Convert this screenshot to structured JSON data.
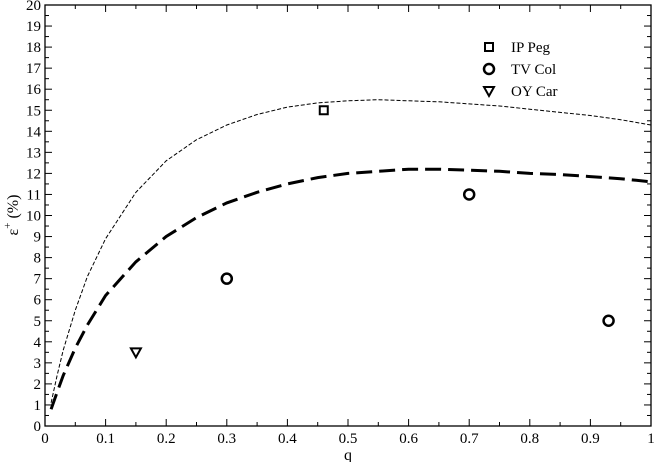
{
  "chart_data": {
    "type": "scatter",
    "xlabel": "q",
    "ylabel_main": "ε",
    "ylabel_sup": "+",
    "ylabel_unit": "(%)",
    "xlim": [
      0,
      1
    ],
    "ylim": [
      0,
      20
    ],
    "x_ticks": [
      "0",
      "0.1",
      "0.2",
      "0.3",
      "0.4",
      "0.5",
      "0.6",
      "0.7",
      "0.8",
      "0.9",
      "1"
    ],
    "y_ticks": [
      "0",
      "1",
      "2",
      "3",
      "4",
      "5",
      "6",
      "7",
      "8",
      "9",
      "10",
      "11",
      "12",
      "13",
      "14",
      "15",
      "16",
      "17",
      "18",
      "19",
      "20"
    ],
    "grid": false,
    "legend_position": "top-right",
    "series": [
      {
        "name": "IP Peg",
        "marker": "square",
        "points": [
          {
            "x": 0.46,
            "y": 15
          }
        ]
      },
      {
        "name": "TV Col",
        "marker": "circle",
        "points": [
          {
            "x": 0.3,
            "y": 7
          },
          {
            "x": 0.7,
            "y": 11
          },
          {
            "x": 0.93,
            "y": 5
          }
        ]
      },
      {
        "name": "OY Car",
        "marker": "triangle-down",
        "points": [
          {
            "x": 0.15,
            "y": 3.5
          }
        ]
      }
    ],
    "curves": [
      {
        "style": "thin-dashed",
        "x": [
          0.01,
          0.02,
          0.03,
          0.05,
          0.07,
          0.1,
          0.15,
          0.2,
          0.25,
          0.3,
          0.35,
          0.4,
          0.45,
          0.5,
          0.55,
          0.6,
          0.65,
          0.7,
          0.75,
          0.8,
          0.85,
          0.9,
          0.95,
          1.0
        ],
        "y": [
          1.1,
          2.4,
          3.6,
          5.5,
          7.1,
          8.9,
          11.1,
          12.6,
          13.6,
          14.3,
          14.8,
          15.15,
          15.35,
          15.45,
          15.5,
          15.45,
          15.4,
          15.3,
          15.2,
          15.05,
          14.9,
          14.75,
          14.55,
          14.3
        ]
      },
      {
        "style": "thick-dashed",
        "x": [
          0.01,
          0.02,
          0.03,
          0.05,
          0.07,
          0.1,
          0.15,
          0.2,
          0.25,
          0.3,
          0.35,
          0.4,
          0.45,
          0.5,
          0.55,
          0.6,
          0.65,
          0.7,
          0.75,
          0.8,
          0.85,
          0.9,
          0.95,
          1.0
        ],
        "y": [
          0.8,
          1.6,
          2.4,
          3.7,
          4.8,
          6.2,
          7.8,
          9.0,
          9.9,
          10.6,
          11.1,
          11.5,
          11.8,
          12.0,
          12.1,
          12.2,
          12.2,
          12.15,
          12.1,
          12.0,
          11.95,
          11.85,
          11.75,
          11.6
        ]
      }
    ]
  }
}
